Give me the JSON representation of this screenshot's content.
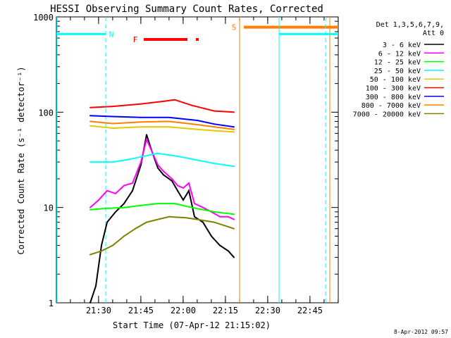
{
  "chart_data": {
    "type": "line",
    "title": "HESSI Observing Summary Count Rates, Corrected",
    "xlabel": "Start Time (07-Apr-12 21:15:02)",
    "ylabel": "Corrected Count Rate (s⁻¹ detector⁻¹)",
    "y_scale": "log",
    "ylim": [
      1,
      1000
    ],
    "x_axis_minutes_from_start": [
      0,
      100
    ],
    "x_ticks": [
      "21:30",
      "21:45",
      "22:00",
      "22:15",
      "22:30",
      "22:45"
    ],
    "y_ticks": [
      "1",
      "10",
      "100",
      "1000"
    ],
    "legend_title": [
      "Det 1,3,5,6,7,9,",
      "Att 0"
    ],
    "legend_position": "right",
    "footer": "8-Apr-2012 09:57",
    "flags": {
      "N": {
        "label": "N",
        "color": "#00ffff"
      },
      "S": {
        "label": "S",
        "color": "#ff7f00"
      },
      "F": {
        "label": "F",
        "color": "#ff0000"
      }
    },
    "series": [
      {
        "name": "3 - 6 keV",
        "color": "#000000"
      },
      {
        "name": "6 - 12 keV",
        "color": "#ff00ff"
      },
      {
        "name": "12 - 25 keV",
        "color": "#00ff00"
      },
      {
        "name": "25 - 50 keV",
        "color": "#00ffff"
      },
      {
        "name": "50 - 100 keV",
        "color": "#e6c800"
      },
      {
        "name": "100 - 300 keV",
        "color": "#ff0000"
      },
      {
        "name": "300 - 800 keV",
        "color": "#0000ff"
      },
      {
        "name": "800 - 7000 keV",
        "color": "#ff8000"
      },
      {
        "name": "7000 - 20000 keV",
        "color": "#808000"
      }
    ],
    "series_points": {
      "100 - 300 keV": [
        [
          12,
          112
        ],
        [
          20,
          115
        ],
        [
          30,
          122
        ],
        [
          38,
          130
        ],
        [
          42,
          135
        ],
        [
          48,
          118
        ],
        [
          56,
          103
        ],
        [
          63,
          100
        ]
      ],
      "300 - 800 keV": [
        [
          12,
          92
        ],
        [
          20,
          90
        ],
        [
          30,
          88
        ],
        [
          40,
          88
        ],
        [
          50,
          82
        ],
        [
          56,
          75
        ],
        [
          63,
          70
        ]
      ],
      "800 - 7000 keV": [
        [
          12,
          80
        ],
        [
          20,
          76
        ],
        [
          30,
          79
        ],
        [
          40,
          80
        ],
        [
          50,
          74
        ],
        [
          56,
          70
        ],
        [
          63,
          66
        ]
      ],
      "50 - 100 keV": [
        [
          12,
          72
        ],
        [
          20,
          68
        ],
        [
          30,
          70
        ],
        [
          40,
          70
        ],
        [
          50,
          66
        ],
        [
          56,
          64
        ],
        [
          63,
          62
        ]
      ],
      "25 - 50 keV": [
        [
          12,
          30
        ],
        [
          20,
          30
        ],
        [
          26,
          32
        ],
        [
          30,
          34
        ],
        [
          36,
          37
        ],
        [
          44,
          34
        ],
        [
          56,
          29
        ],
        [
          63,
          27
        ]
      ],
      "3 - 6 keV": [
        [
          12,
          1.0
        ],
        [
          14,
          1.5
        ],
        [
          16,
          4
        ],
        [
          18,
          7
        ],
        [
          21,
          9
        ],
        [
          24,
          11
        ],
        [
          27,
          15
        ],
        [
          30,
          28
        ],
        [
          32,
          58
        ],
        [
          34,
          38
        ],
        [
          36,
          26
        ],
        [
          38,
          22
        ],
        [
          41,
          19
        ],
        [
          43,
          15
        ],
        [
          45,
          12
        ],
        [
          47,
          15
        ],
        [
          49,
          8
        ],
        [
          52,
          7
        ],
        [
          55,
          5
        ],
        [
          58,
          4
        ],
        [
          61,
          3.5
        ],
        [
          63,
          3
        ]
      ],
      "6 - 12 keV": [
        [
          12,
          10
        ],
        [
          15,
          12
        ],
        [
          18,
          15
        ],
        [
          21,
          14
        ],
        [
          24,
          17
        ],
        [
          27,
          18
        ],
        [
          30,
          30
        ],
        [
          32,
          52
        ],
        [
          34,
          38
        ],
        [
          36,
          28
        ],
        [
          38,
          24
        ],
        [
          41,
          20
        ],
        [
          43,
          17
        ],
        [
          45,
          16
        ],
        [
          47,
          18
        ],
        [
          49,
          11
        ],
        [
          52,
          10
        ],
        [
          55,
          9
        ],
        [
          58,
          8
        ],
        [
          61,
          8
        ],
        [
          63,
          7.5
        ]
      ],
      "12 - 25 keV": [
        [
          12,
          9.5
        ],
        [
          18,
          9.8
        ],
        [
          24,
          10
        ],
        [
          30,
          10.5
        ],
        [
          36,
          11
        ],
        [
          42,
          11
        ],
        [
          48,
          10
        ],
        [
          56,
          9
        ],
        [
          63,
          8.5
        ]
      ],
      "7000 - 20000 keV": [
        [
          12,
          3.2
        ],
        [
          16,
          3.5
        ],
        [
          20,
          4
        ],
        [
          24,
          5
        ],
        [
          28,
          6
        ],
        [
          32,
          7
        ],
        [
          36,
          7.5
        ],
        [
          40,
          8
        ],
        [
          46,
          7.8
        ],
        [
          50,
          7.5
        ],
        [
          56,
          7
        ],
        [
          63,
          6
        ]
      ]
    }
  }
}
